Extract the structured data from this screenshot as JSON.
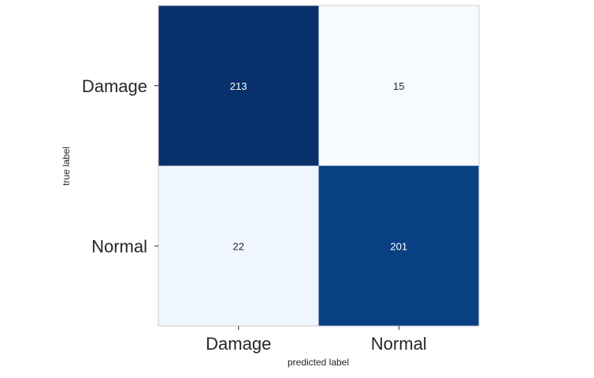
{
  "chart_data": {
    "type": "heatmap",
    "colormap": "Blues",
    "row_labels": [
      "Damage",
      "Normal"
    ],
    "col_labels": [
      "Damage",
      "Normal"
    ],
    "values": [
      [
        213,
        15
      ],
      [
        22,
        201
      ]
    ],
    "xlabel": "predicted label",
    "ylabel": "true label",
    "colors": {
      "low": "#f7fbff",
      "high": "#08306b",
      "text_dark": "#262626",
      "text_light": "#ffffff",
      "frame": "#cccccc"
    }
  }
}
